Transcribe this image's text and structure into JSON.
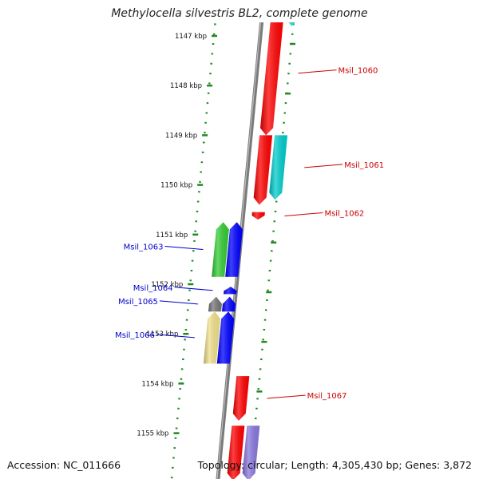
{
  "title": "Methylocella silvestris BL2, complete genome",
  "accession": "Accession: NC_011666",
  "topology": "Topology: circular; Length: 4,305,430 bp; Genes: 3,872",
  "kbp_labels": [
    {
      "label": "1147 kbp",
      "kbp": 1147
    },
    {
      "label": "1148 kbp",
      "kbp": 1148
    },
    {
      "label": "1149 kbp",
      "kbp": 1149
    },
    {
      "label": "1150 kbp",
      "kbp": 1150
    },
    {
      "label": "1151 kbp",
      "kbp": 1151
    },
    {
      "label": "1152 kbp",
      "kbp": 1152
    },
    {
      "label": "1153 kbp",
      "kbp": 1153
    },
    {
      "label": "1154 kbp",
      "kbp": 1154
    },
    {
      "label": "1155 kbp",
      "kbp": 1155
    }
  ],
  "genes": [
    {
      "label": "Msil_1060",
      "start_kbp": 1146.5,
      "end_kbp": 1149.0,
      "strand": "-",
      "lane": 1,
      "color": "#ff0000"
    },
    {
      "label": "",
      "start_kbp": 1146.5,
      "end_kbp": 1146.8,
      "strand": "-",
      "lane": 2,
      "color": "#00cccc"
    },
    {
      "label": "Msil_1061",
      "start_kbp": 1149.0,
      "end_kbp": 1150.3,
      "strand": "-",
      "lane": 2,
      "color": "#00cccc"
    },
    {
      "label": "",
      "start_kbp": 1149.0,
      "end_kbp": 1150.4,
      "strand": "-",
      "lane": 1,
      "color": "#ff0000"
    },
    {
      "label": "Msil_1062",
      "start_kbp": 1150.55,
      "end_kbp": 1150.7,
      "strand": "-",
      "lane": 1,
      "color": "#ff0000"
    },
    {
      "label": "Msil_1063",
      "start_kbp": 1150.75,
      "end_kbp": 1151.85,
      "strand": "+",
      "lane": -2,
      "color": "#33cc33"
    },
    {
      "label": "",
      "start_kbp": 1150.75,
      "end_kbp": 1151.85,
      "strand": "+",
      "lane": -1,
      "color": "#0000ff"
    },
    {
      "label": "Msil_1064",
      "start_kbp": 1152.05,
      "end_kbp": 1152.2,
      "strand": "+",
      "lane": -1,
      "color": "#0000ff"
    },
    {
      "label": "Msil_1065",
      "start_kbp": 1152.25,
      "end_kbp": 1152.55,
      "strand": "+",
      "lane": -2,
      "color": "#777777"
    },
    {
      "label": "",
      "start_kbp": 1152.25,
      "end_kbp": 1152.55,
      "strand": "+",
      "lane": -1,
      "color": "#0000ff"
    },
    {
      "label": "Msil_1066",
      "start_kbp": 1152.55,
      "end_kbp": 1153.6,
      "strand": "+",
      "lane": -2,
      "color": "#f0e08a"
    },
    {
      "label": "",
      "start_kbp": 1152.55,
      "end_kbp": 1153.6,
      "strand": "+",
      "lane": -1,
      "color": "#0000ff"
    },
    {
      "label": "Msil_1067",
      "start_kbp": 1153.85,
      "end_kbp": 1154.75,
      "strand": "-",
      "lane": 1,
      "color": "#ff0000"
    },
    {
      "label": "",
      "start_kbp": 1154.85,
      "end_kbp": 1155.95,
      "strand": "-",
      "lane": 1,
      "color": "#ff0000"
    },
    {
      "label": "",
      "start_kbp": 1154.85,
      "end_kbp": 1155.95,
      "strand": "-",
      "lane": 2,
      "color": "#8877dd"
    }
  ],
  "colors": {
    "backbone": "#7a7a7a",
    "ruler": "#228822",
    "forward_label": "#0000cc",
    "reverse_label": "#cc0000"
  }
}
